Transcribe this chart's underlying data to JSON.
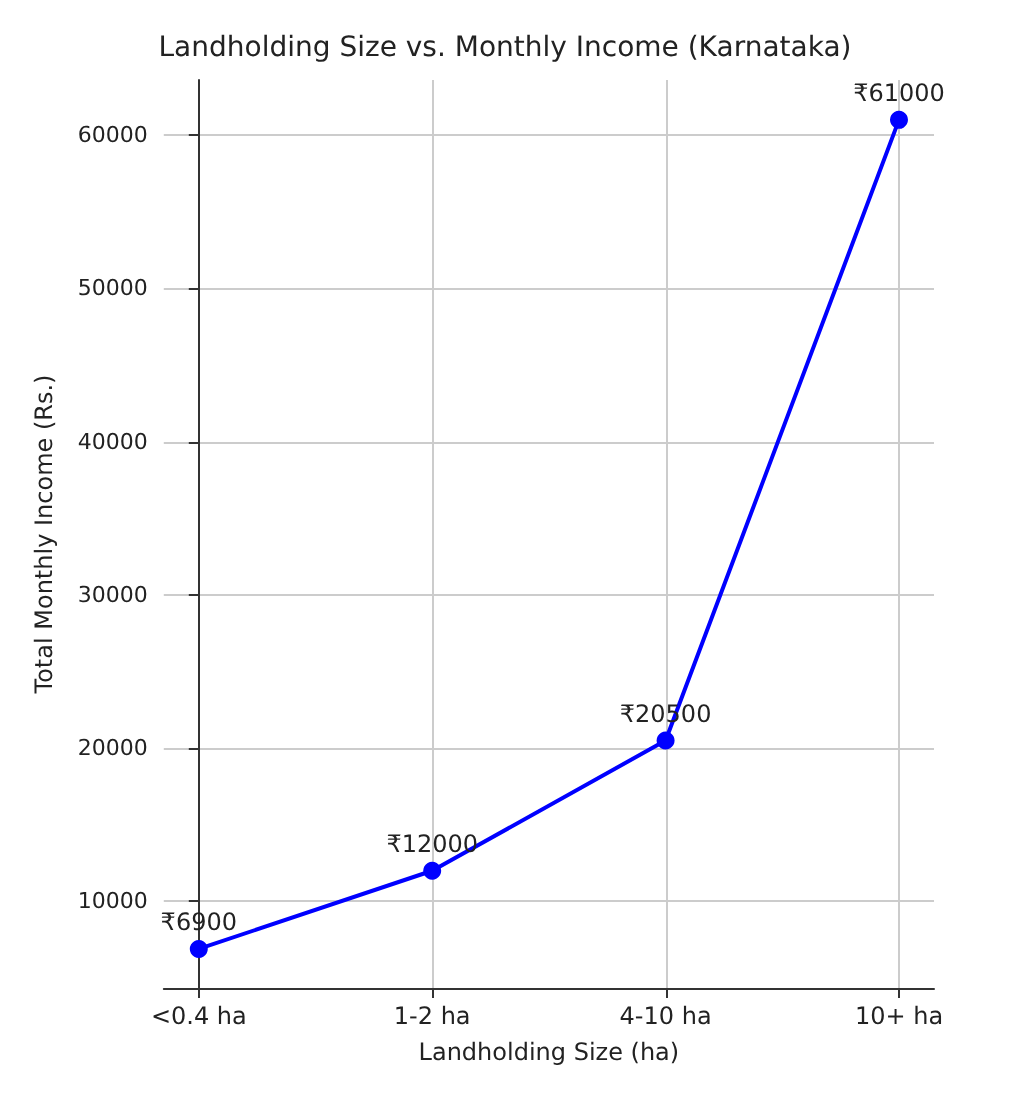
{
  "chart_data": {
    "type": "line",
    "title": "Landholding Size vs. Monthly Income (Karnataka)",
    "xlabel": "Landholding Size (ha)",
    "ylabel": "Total Monthly Income (Rs.)",
    "categories": [
      "<0.4 ha",
      "1-2 ha",
      "4-10 ha",
      "10+ ha"
    ],
    "series": [
      {
        "color": "#0000ff",
        "values": [
          6900,
          12000,
          20500,
          61000
        ],
        "value_labels": [
          "₹6900",
          "₹12000",
          "₹20500",
          "₹61000"
        ]
      }
    ],
    "ylim": [
      4350,
      63600
    ],
    "yticks": [
      10000,
      20000,
      30000,
      40000,
      50000,
      60000
    ],
    "grid": true,
    "marker": "circle",
    "line_style": "solid"
  }
}
